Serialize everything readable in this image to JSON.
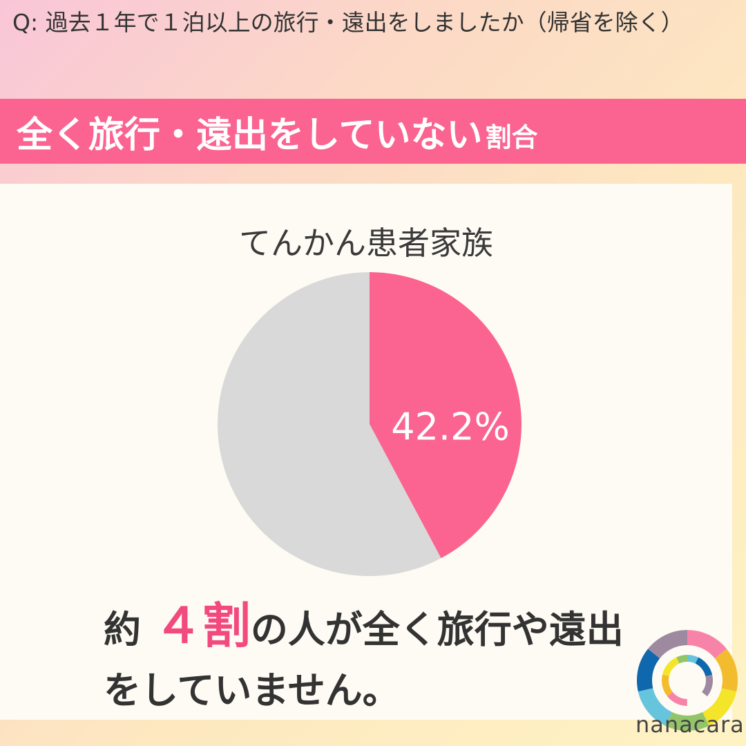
{
  "question": "Q: 過去１年で１泊以上の旅行・遠出をしましたか（帰省を除く）",
  "banner": {
    "main": "全く旅行・遠出をしていない",
    "suffix": "割合"
  },
  "chart_data": {
    "type": "pie",
    "title": "てんかん患者家族",
    "slices": [
      {
        "label": "42.2%",
        "value": 42.2,
        "color": "#fb6390"
      },
      {
        "label": "",
        "value": 57.8,
        "color": "#d9d9d9"
      }
    ],
    "start": "top",
    "direction": "clockwise"
  },
  "conclusion": {
    "pre": "約 ",
    "highlight": "４割",
    "post": "の人が全く旅行や遠出をしていません。"
  },
  "logo": {
    "text": "nanacara",
    "colors": [
      "#f784a8",
      "#f3bc2e",
      "#f4e52a",
      "#93c46a",
      "#66c4dd",
      "#0f67ad",
      "#9e8aa0"
    ]
  }
}
